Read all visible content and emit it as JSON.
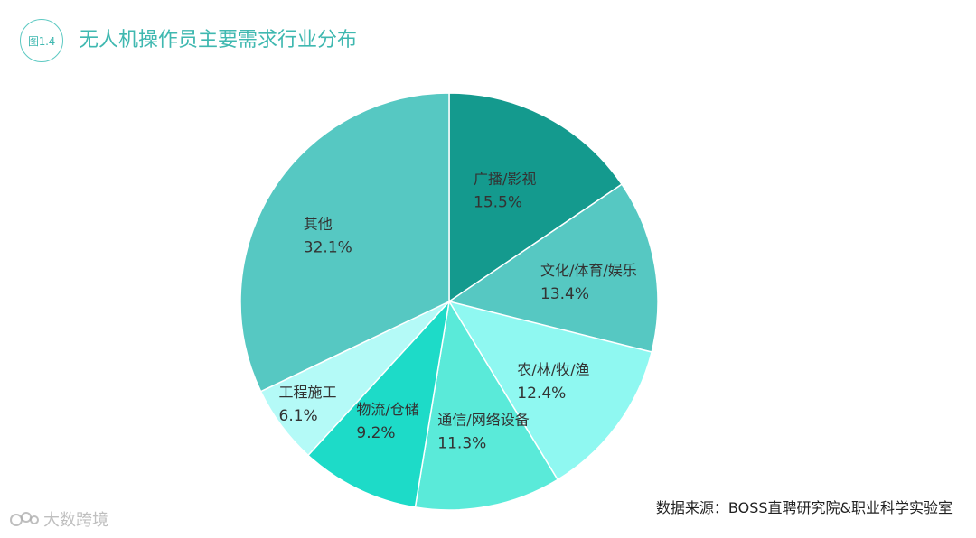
{
  "figure": {
    "badge": "图1.4",
    "title": "无人机操作员主要需求行业分布"
  },
  "chart_data": {
    "type": "pie",
    "title": "无人机操作员主要需求行业分布",
    "unit": "%",
    "slices": [
      {
        "label": "广播/影视",
        "value": 15.5,
        "value_text": "15.5%",
        "color": "#149a8e"
      },
      {
        "label": "文化/体育/娱乐",
        "value": 13.4,
        "value_text": "13.4%",
        "color": "#56c8c2"
      },
      {
        "label": "农/林/牧/渔",
        "value": 12.4,
        "value_text": "12.4%",
        "color": "#8ff8f1"
      },
      {
        "label": "通信/网络设备",
        "value": 11.3,
        "value_text": "11.3%",
        "color": "#5aead9"
      },
      {
        "label": "物流/仓储",
        "value": 9.2,
        "value_text": "9.2%",
        "color": "#1ddbc8"
      },
      {
        "label": "工程施工",
        "value": 6.1,
        "value_text": "6.1%",
        "color": "#b4faf7"
      },
      {
        "label": "其他",
        "value": 32.1,
        "value_text": "32.1%",
        "color": "#56c8c2"
      }
    ]
  },
  "source": "数据来源：BOSS直聘研究院&职业科学实验室",
  "watermark": "大数跨境"
}
